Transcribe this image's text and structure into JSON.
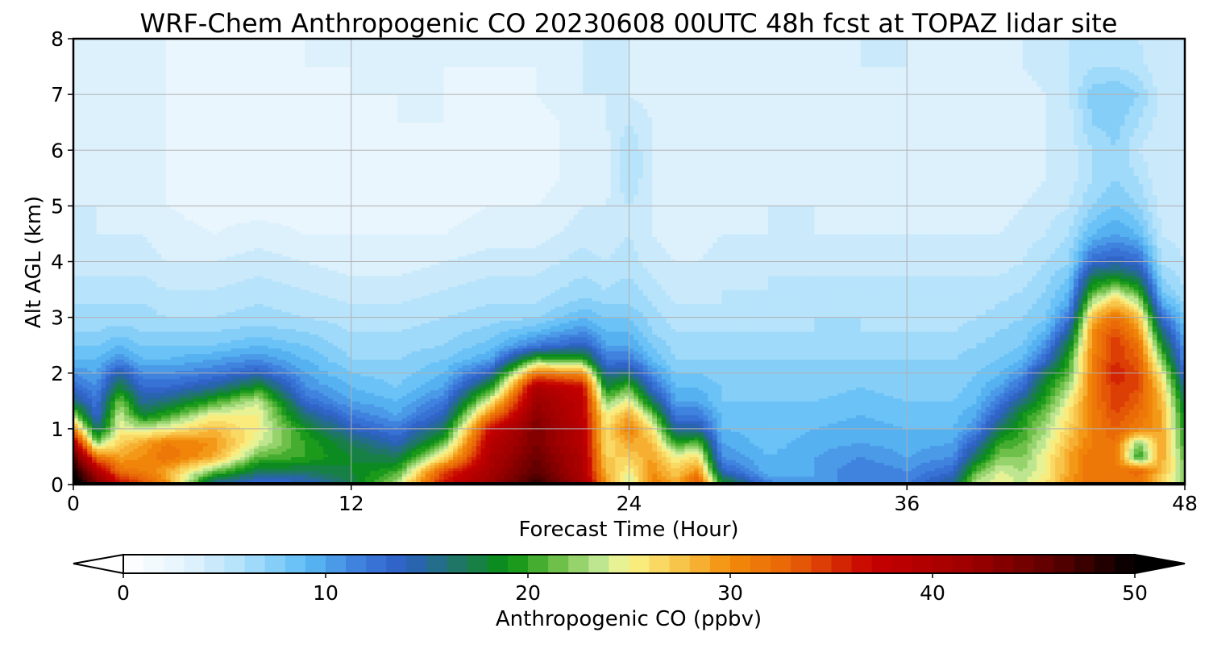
{
  "chart_data": {
    "type": "heatmap",
    "subtype": "filled-contour time-height cross-section",
    "title": "WRF-Chem Anthropogenic CO  20230608 00UTC 48h fcst at TOPAZ lidar site",
    "xlabel": "Forecast Time (Hour)",
    "ylabel": "Alt AGL (km)",
    "xlim": [
      0,
      48
    ],
    "ylim": [
      0,
      8
    ],
    "x_ticks": [
      0,
      12,
      24,
      36,
      48
    ],
    "x_tick_labels": [
      "0",
      "12",
      "24",
      "36",
      "48"
    ],
    "y_ticks": [
      0,
      1,
      2,
      3,
      4,
      5,
      6,
      7,
      8
    ],
    "y_tick_labels": [
      "0",
      "1",
      "2",
      "3",
      "4",
      "5",
      "6",
      "7",
      "8"
    ],
    "grid": true,
    "x_hours": [
      0,
      1,
      2,
      3,
      4,
      6,
      8,
      10,
      12,
      14,
      16,
      18,
      20,
      22,
      23,
      24,
      25,
      26,
      27,
      28,
      30,
      32,
      34,
      36,
      38,
      39,
      40,
      41,
      42,
      43,
      44,
      45,
      46,
      47,
      48
    ],
    "y_km": [
      0,
      0.25,
      0.5,
      0.75,
      1,
      1.25,
      1.5,
      1.75,
      2,
      2.25,
      2.5,
      2.75,
      3,
      3.25,
      3.5,
      3.75,
      4,
      4.5,
      5,
      5.5,
      6,
      6.5,
      7,
      7.5,
      8
    ],
    "profiles_ppbv": [
      [
        52,
        50,
        47,
        40,
        31,
        23,
        16,
        13,
        11,
        9,
        8,
        7,
        6.5,
        6,
        5.5,
        5,
        5,
        4.5,
        4,
        4,
        4,
        4,
        3.5,
        3.5,
        3
      ],
      [
        45,
        40,
        32,
        22,
        16,
        13,
        12,
        11,
        10,
        9,
        8,
        7,
        6.5,
        6,
        5.5,
        5,
        4.5,
        4,
        4,
        3.5,
        3.5,
        3.5,
        3.5,
        3,
        3
      ],
      [
        38,
        32,
        29,
        27,
        25,
        24,
        22,
        18,
        15,
        11,
        9,
        7.5,
        6.5,
        6,
        5.5,
        5,
        4.5,
        4,
        3.5,
        3.5,
        3,
        3,
        3,
        3,
        3
      ],
      [
        34,
        31,
        30,
        29,
        24,
        18,
        15,
        13,
        11,
        9,
        8,
        7,
        6.5,
        6,
        5.5,
        5,
        4.5,
        4,
        3.5,
        3,
        3,
        3,
        3,
        3,
        3
      ],
      [
        30,
        29,
        32,
        31,
        25,
        20,
        16,
        13,
        11,
        9,
        8,
        7,
        6,
        5.5,
        5,
        4.5,
        4,
        3.5,
        3,
        3,
        3,
        3,
        3,
        3,
        3
      ],
      [
        14,
        22,
        29,
        30,
        28,
        25,
        20,
        15,
        12,
        10,
        8,
        7,
        6,
        5.5,
        5,
        4.5,
        4,
        3,
        2.5,
        2,
        2,
        2,
        2,
        2.5,
        3
      ],
      [
        12,
        17,
        21,
        24,
        25,
        25,
        24,
        19,
        14,
        11,
        9,
        7.5,
        6.5,
        6,
        5.5,
        5,
        4.5,
        3.5,
        2.5,
        2,
        2,
        2,
        2,
        2.5,
        3
      ],
      [
        13,
        17,
        20,
        20,
        19,
        16,
        13,
        11,
        10,
        9,
        8,
        7,
        6,
        5.5,
        5,
        4.5,
        4,
        3,
        2.5,
        2,
        2,
        2,
        2.5,
        3,
        3
      ],
      [
        17,
        18,
        18,
        17,
        14,
        12,
        10,
        9,
        8,
        7,
        6.5,
        6,
        5.5,
        5,
        4.5,
        4,
        3.5,
        3,
        2.5,
        2.5,
        2.5,
        2.5,
        3,
        3,
        3
      ],
      [
        24,
        20,
        17,
        14,
        12,
        10,
        9,
        8,
        7.5,
        7,
        6.5,
        6,
        5.5,
        5,
        4.5,
        4,
        3.5,
        3,
        2.5,
        2.5,
        2.5,
        3,
        3,
        3,
        3.5
      ],
      [
        37,
        34,
        26,
        21,
        17,
        14,
        12,
        10,
        9,
        8,
        7,
        6.5,
        6,
        5.5,
        5,
        4.5,
        4,
        3,
        2.5,
        2.5,
        2.5,
        3,
        3,
        3,
        3
      ],
      [
        42,
        41,
        40,
        39,
        37,
        31,
        25,
        19,
        14,
        10,
        8.5,
        7.5,
        6.5,
        6,
        5.5,
        5,
        4.5,
        3.5,
        3,
        2.5,
        2.5,
        2.5,
        2.5,
        3,
        3
      ],
      [
        48,
        46,
        45,
        44,
        44,
        43,
        42,
        40,
        32,
        21,
        12,
        9,
        7,
        6,
        5.5,
        5,
        4.5,
        3.5,
        3,
        2.5,
        2.5,
        2.5,
        3,
        3,
        3.5
      ],
      [
        41,
        40,
        40,
        39,
        39,
        38,
        38,
        37,
        30,
        20,
        14,
        11,
        9,
        7.5,
        6.5,
        6,
        5.5,
        4.5,
        4,
        3.5,
        3.5,
        3.5,
        4,
        4,
        4
      ],
      [
        30,
        28,
        27,
        26,
        26,
        25,
        22,
        18,
        15,
        12,
        10,
        9,
        8,
        7,
        6,
        5.5,
        5,
        4.5,
        4,
        3.5,
        3.5,
        4,
        4,
        4,
        4
      ],
      [
        23,
        25,
        27,
        29,
        31,
        29,
        25,
        21,
        16,
        12,
        10,
        9,
        8,
        7,
        6.5,
        6,
        5.5,
        5,
        5,
        6,
        6,
        5,
        4,
        4,
        4
      ],
      [
        31,
        30,
        29,
        28,
        26,
        22,
        17,
        13,
        11,
        9,
        8,
        7,
        6.5,
        6,
        5.5,
        5,
        4.5,
        4,
        4,
        4,
        4,
        4,
        3.5,
        3.5,
        3.5
      ],
      [
        29,
        27,
        25,
        20,
        15,
        12,
        10,
        9,
        8,
        7,
        6.5,
        6,
        5.5,
        5,
        4.5,
        4,
        4,
        3.5,
        3.5,
        3.5,
        3.5,
        3.5,
        3.5,
        3.5,
        3.5
      ],
      [
        35,
        30,
        26,
        21,
        15,
        12,
        10,
        9,
        8,
        7,
        6.5,
        6,
        5.5,
        5,
        4.5,
        4,
        4,
        3.5,
        3.5,
        3.5,
        3,
        3,
        3,
        3,
        3
      ],
      [
        20,
        14,
        11,
        10,
        9,
        9,
        8,
        8,
        7.5,
        7,
        6.5,
        6,
        5.5,
        5,
        5,
        4.5,
        4.5,
        4,
        3.5,
        3.5,
        3,
        3,
        3,
        3,
        3
      ],
      [
        12,
        9,
        9,
        8.5,
        8.5,
        8,
        8,
        7.5,
        7,
        7,
        6.5,
        6,
        5.5,
        5.5,
        5,
        5,
        4.5,
        4,
        4,
        3.5,
        3.5,
        3,
        3,
        3,
        3
      ],
      [
        10,
        10,
        10,
        9.5,
        9,
        8.5,
        8,
        7.5,
        7,
        7,
        6.5,
        6,
        6,
        5.5,
        5,
        5,
        4.5,
        4,
        4,
        3.5,
        3.5,
        3.5,
        3,
        3.5,
        3.5
      ],
      [
        12,
        12,
        11,
        10,
        9.5,
        9,
        8.5,
        8,
        7.5,
        7,
        6.5,
        6,
        6,
        5.5,
        5,
        5,
        4.5,
        4,
        3.5,
        3.5,
        3.5,
        3.5,
        3.5,
        4,
        4
      ],
      [
        12,
        11,
        10,
        9.5,
        9,
        8.5,
        8,
        7.5,
        7,
        7,
        6.5,
        6,
        5.5,
        5.5,
        5,
        5,
        4.5,
        4,
        3.5,
        3.5,
        3,
        3,
        3.5,
        4,
        4
      ],
      [
        16,
        13,
        11,
        10,
        9,
        8.5,
        8,
        7.5,
        7,
        7,
        6.5,
        6,
        5.5,
        5.5,
        5,
        5,
        4.5,
        4,
        3.5,
        3.5,
        3,
        3,
        3,
        3.5,
        4
      ],
      [
        24,
        21,
        17,
        14,
        11,
        10,
        9,
        8.5,
        8,
        7.5,
        7,
        6.5,
        6,
        5.5,
        5,
        5,
        4.5,
        4,
        3.5,
        3.5,
        3,
        3,
        3,
        3.5,
        4
      ],
      [
        25,
        24,
        22,
        20,
        17,
        14,
        12,
        10,
        9,
        8,
        7.5,
        7,
        6.5,
        6,
        5.5,
        5,
        4.5,
        4,
        3.5,
        3.5,
        3,
        3,
        3,
        3.5,
        4
      ],
      [
        24,
        23,
        22,
        21,
        20,
        19,
        16,
        13,
        11,
        9,
        8,
        7.5,
        7,
        6.5,
        6,
        5.5,
        5,
        4.5,
        4,
        3.5,
        3.5,
        3.5,
        3.5,
        4,
        4
      ],
      [
        26,
        25,
        25,
        24,
        23,
        22,
        20,
        19,
        17,
        13,
        11,
        9,
        8,
        7.5,
        7,
        6.5,
        6,
        5,
        4.5,
        4,
        4,
        4,
        4,
        4.5,
        4.5
      ],
      [
        30,
        29,
        29,
        28,
        27,
        26,
        25,
        23,
        21,
        20,
        18,
        15,
        12,
        10,
        9,
        8,
        7,
        6,
        5,
        4.5,
        4.5,
        4.5,
        5,
        5,
        5
      ],
      [
        32,
        32,
        32,
        31,
        31,
        31,
        31,
        31,
        31,
        31,
        30,
        30,
        28,
        24,
        20,
        17,
        13,
        9,
        7,
        6,
        6,
        7,
        7.5,
        6,
        5
      ],
      [
        31,
        31,
        32,
        32,
        33,
        34,
        35,
        35,
        36,
        35,
        35,
        34,
        32,
        28,
        23,
        18,
        14,
        10,
        8,
        7,
        7,
        7.5,
        8,
        6,
        5
      ],
      [
        31,
        33,
        19,
        22,
        31,
        32,
        33,
        34,
        34,
        33,
        32,
        30,
        28,
        24,
        20,
        16,
        13,
        9,
        7,
        6,
        5,
        6,
        7,
        5.5,
        5
      ],
      [
        26,
        28,
        29,
        29,
        29,
        29,
        28,
        27,
        25,
        22,
        19,
        16,
        13,
        10,
        8,
        7,
        6,
        5,
        4.5,
        4,
        4,
        4.5,
        4.5,
        4,
        4
      ],
      [
        22,
        22,
        21,
        20,
        19,
        18,
        17,
        15,
        13,
        11,
        10,
        9,
        8,
        7,
        6,
        5.5,
        5,
        4.5,
        4,
        4,
        4,
        4,
        4,
        4,
        4
      ]
    ],
    "colorbar": {
      "label": "Anthropogenic CO  (ppbv)",
      "range": [
        0,
        50
      ],
      "step": 1,
      "extend": "both",
      "ticks": [
        0,
        10,
        20,
        30,
        40,
        50
      ],
      "tick_labels": [
        "0",
        "10",
        "20",
        "30",
        "40",
        "50"
      ],
      "colormap_anchors": [
        {
          "value": 0,
          "color": "#ffffff"
        },
        {
          "value": 3,
          "color": "#e6f4fd"
        },
        {
          "value": 6,
          "color": "#aee0fb"
        },
        {
          "value": 9,
          "color": "#5cbcf5"
        },
        {
          "value": 12,
          "color": "#3a78db"
        },
        {
          "value": 14,
          "color": "#2c5fc0"
        },
        {
          "value": 17,
          "color": "#1c7a55"
        },
        {
          "value": 19,
          "color": "#079010"
        },
        {
          "value": 21,
          "color": "#5ab73a"
        },
        {
          "value": 24,
          "color": "#d2eea0"
        },
        {
          "value": 25,
          "color": "#fbf58a"
        },
        {
          "value": 28,
          "color": "#f7bb3e"
        },
        {
          "value": 30,
          "color": "#f28c0a"
        },
        {
          "value": 33,
          "color": "#e86308"
        },
        {
          "value": 37,
          "color": "#c70000"
        },
        {
          "value": 42,
          "color": "#9c0000"
        },
        {
          "value": 46,
          "color": "#5c0000"
        },
        {
          "value": 50,
          "color": "#000000"
        }
      ],
      "under_color": "#ffffff",
      "over_color": "#000000"
    }
  }
}
